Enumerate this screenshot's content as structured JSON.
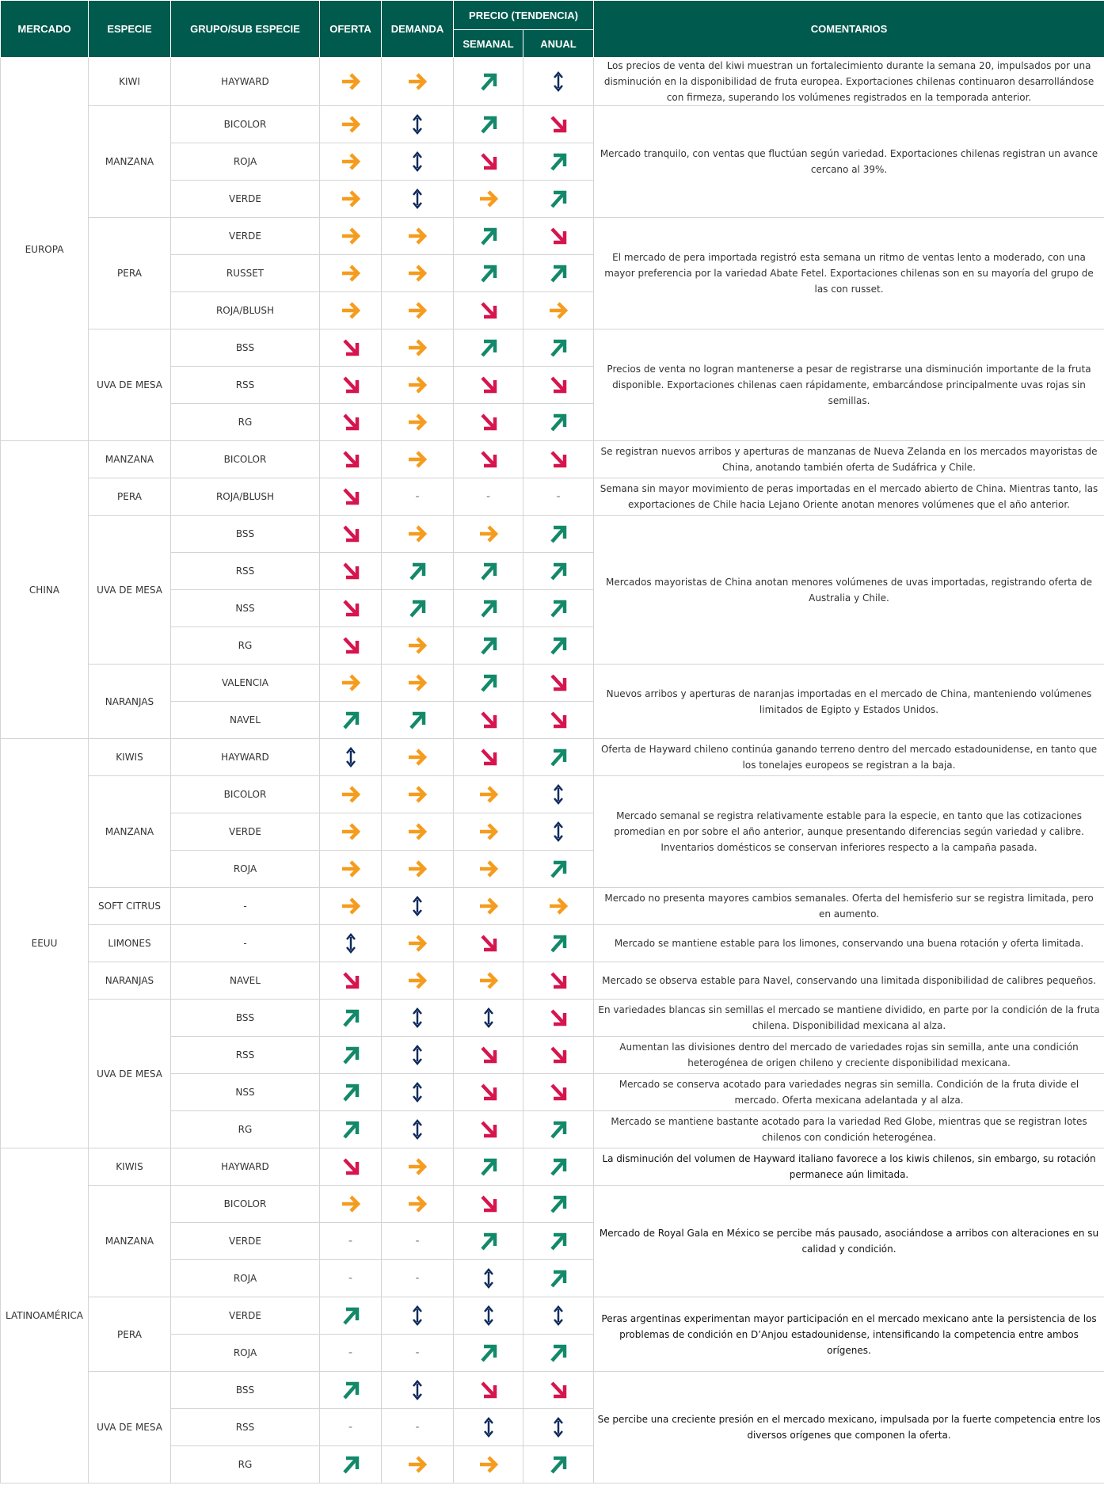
{
  "colors": {
    "header_bg": "#005a4e",
    "right": "#f59c1e",
    "up": "#13896a",
    "down": "#d6154e",
    "updown": "#0e2a5c"
  },
  "icon_names": {
    "right": "right-arrow-icon",
    "up": "up-right-arrow-icon",
    "down": "down-right-arrow-icon",
    "updown": "up-down-arrow-icon",
    "none": "dash"
  },
  "header": {
    "mercado": "MERCADO",
    "especie": "ESPECIE",
    "grupo": "GRUPO/SUB ESPECIE",
    "oferta": "OFERTA",
    "demanda": "DEMANDA",
    "precio": "PRECIO (TENDENCIA)",
    "semanal": "SEMANAL",
    "anual": "ANUAL",
    "comentarios": "COMENTARIOS"
  },
  "markets": [
    {
      "name": "EUROPA",
      "species": [
        {
          "name": "KIWI",
          "groups": [
            {
              "name": "HAYWARD",
              "oferta": "right",
              "demanda": "right",
              "semanal": "up",
              "anual": "updown"
            }
          ],
          "comment": "Los precios de venta del kiwi muestran un fortalecimiento durante la semana 20, impulsados por una disminución en la disponibilidad de fruta europea. Exportaciones chilenas continuaron desarrollándose con firmeza, superando los volúmenes registrados en la temporada anterior."
        },
        {
          "name": "MANZANA",
          "groups": [
            {
              "name": "BICOLOR",
              "oferta": "right",
              "demanda": "updown",
              "semanal": "up",
              "anual": "down"
            },
            {
              "name": "ROJA",
              "oferta": "right",
              "demanda": "updown",
              "semanal": "down",
              "anual": "up"
            },
            {
              "name": "VERDE",
              "oferta": "right",
              "demanda": "updown",
              "semanal": "right",
              "anual": "up"
            }
          ],
          "comment": "Mercado tranquilo, con ventas que fluctúan según variedad. Exportaciones chilenas registran un avance cercano al 39%."
        },
        {
          "name": "PERA",
          "groups": [
            {
              "name": "VERDE",
              "oferta": "right",
              "demanda": "right",
              "semanal": "up",
              "anual": "down"
            },
            {
              "name": "RUSSET",
              "oferta": "right",
              "demanda": "right",
              "semanal": "up",
              "anual": "up"
            },
            {
              "name": "ROJA/BLUSH",
              "oferta": "right",
              "demanda": "right",
              "semanal": "down",
              "anual": "right"
            }
          ],
          "comment": "El mercado de pera importada registró esta semana un ritmo de ventas lento a moderado, con una mayor preferencia por la variedad Abate Fetel. Exportaciones chilenas son en su mayoría del grupo de las con russet."
        },
        {
          "name": "UVA DE MESA",
          "groups": [
            {
              "name": "BSS",
              "oferta": "down",
              "demanda": "right",
              "semanal": "up",
              "anual": "up"
            },
            {
              "name": "RSS",
              "oferta": "down",
              "demanda": "right",
              "semanal": "down",
              "anual": "down"
            },
            {
              "name": "RG",
              "oferta": "down",
              "demanda": "right",
              "semanal": "down",
              "anual": "up"
            }
          ],
          "comment": "Precios de venta no logran mantenerse a pesar de registrarse una disminución importante de la fruta disponible. Exportaciones chilenas caen rápidamente, embarcándose principalmente uvas rojas sin semillas."
        }
      ]
    },
    {
      "name": "CHINA",
      "species": [
        {
          "name": "MANZANA",
          "groups": [
            {
              "name": "BICOLOR",
              "oferta": "down",
              "demanda": "right",
              "semanal": "down",
              "anual": "down"
            }
          ],
          "comment": "Se registran nuevos arribos y aperturas de manzanas de Nueva Zelanda en los mercados mayoristas de China, anotando también oferta de Sudáfrica y Chile."
        },
        {
          "name": "PERA",
          "groups": [
            {
              "name": "ROJA/BLUSH",
              "oferta": "down",
              "demanda": "none",
              "semanal": "none",
              "anual": "none"
            }
          ],
          "comment": "Semana sin mayor movimiento de peras importadas en el mercado abierto de China. Mientras tanto, las exportaciones de Chile hacia Lejano Oriente anotan menores volúmenes que el año anterior."
        },
        {
          "name": "UVA DE MESA",
          "groups": [
            {
              "name": "BSS",
              "oferta": "down",
              "demanda": "right",
              "semanal": "right",
              "anual": "up"
            },
            {
              "name": "RSS",
              "oferta": "down",
              "demanda": "up",
              "semanal": "up",
              "anual": "up"
            },
            {
              "name": "NSS",
              "oferta": "down",
              "demanda": "up",
              "semanal": "up",
              "anual": "up"
            },
            {
              "name": "RG",
              "oferta": "down",
              "demanda": "right",
              "semanal": "up",
              "anual": "up"
            }
          ],
          "comment": "Mercados mayoristas de China anotan menores volúmenes de uvas importadas, registrando oferta de Australia y Chile."
        },
        {
          "name": "NARANJAS",
          "groups": [
            {
              "name": "VALENCIA",
              "oferta": "right",
              "demanda": "right",
              "semanal": "up",
              "anual": "down"
            },
            {
              "name": "NAVEL",
              "oferta": "up",
              "demanda": "up",
              "semanal": "down",
              "anual": "down"
            }
          ],
          "comment": "Nuevos arribos y aperturas de naranjas importadas en el mercado de China, manteniendo volúmenes limitados de Egipto y Estados Unidos."
        }
      ]
    },
    {
      "name": "EEUU",
      "species": [
        {
          "name": "KIWIS",
          "groups": [
            {
              "name": "HAYWARD",
              "oferta": "updown",
              "demanda": "right",
              "semanal": "down",
              "anual": "up"
            }
          ],
          "comment": "Oferta de Hayward chileno continúa ganando terreno dentro del mercado estadounidense, en tanto que los tonelajes europeos se registran a la baja."
        },
        {
          "name": "MANZANA",
          "groups": [
            {
              "name": "BICOLOR",
              "oferta": "right",
              "demanda": "right",
              "semanal": "right",
              "anual": "updown"
            },
            {
              "name": "VERDE",
              "oferta": "right",
              "demanda": "right",
              "semanal": "right",
              "anual": "updown"
            },
            {
              "name": "ROJA",
              "oferta": "right",
              "demanda": "right",
              "semanal": "right",
              "anual": "up"
            }
          ],
          "comment": "Mercado semanal se registra relativamente estable para la especie, en tanto que las cotizaciones promedian en por sobre el año anterior, aunque presentando diferencias según variedad y calibre. Inventarios domésticos se conservan inferiores respecto a la campaña pasada."
        },
        {
          "name": "SOFT CITRUS",
          "groups": [
            {
              "name": "-",
              "oferta": "right",
              "demanda": "updown",
              "semanal": "right",
              "anual": "right"
            }
          ],
          "comment": "Mercado no presenta mayores cambios semanales. Oferta del hemisferio sur se registra limitada, pero en aumento."
        },
        {
          "name": "LIMONES",
          "groups": [
            {
              "name": "-",
              "oferta": "updown",
              "demanda": "right",
              "semanal": "down",
              "anual": "up"
            }
          ],
          "comment": "Mercado se mantiene estable para los limones, conservando una buena rotación y oferta limitada."
        },
        {
          "name": "NARANJAS",
          "groups": [
            {
              "name": "NAVEL",
              "oferta": "down",
              "demanda": "right",
              "semanal": "right",
              "anual": "down"
            }
          ],
          "comment": "Mercado se observa estable para Navel, conservando una limitada disponibilidad de calibres pequeños."
        },
        {
          "name": "UVA DE MESA",
          "groups": [
            {
              "name": "BSS",
              "oferta": "up",
              "demanda": "updown",
              "semanal": "updown",
              "anual": "down",
              "comment": "En variedades blancas sin semillas el mercado se mantiene dividido, en parte por la condición de la fruta chilena. Disponibilidad mexicana al alza."
            },
            {
              "name": "RSS",
              "oferta": "up",
              "demanda": "updown",
              "semanal": "down",
              "anual": "down",
              "comment": "Aumentan las divisiones dentro del mercado de variedades rojas sin semilla, ante una condición heterogénea de origen chileno y creciente disponibilidad mexicana."
            },
            {
              "name": "NSS",
              "oferta": "up",
              "demanda": "updown",
              "semanal": "down",
              "anual": "down",
              "comment": "Mercado se conserva acotado para variedades negras sin semilla. Condición de la fruta divide el mercado. Oferta mexicana adelantada y al alza."
            },
            {
              "name": "RG",
              "oferta": "up",
              "demanda": "updown",
              "semanal": "down",
              "anual": "up",
              "comment": "Mercado se mantiene bastante acotado para la variedad Red Globe, mientras que se registran lotes chilenos con condición heterogénea."
            }
          ]
        }
      ]
    },
    {
      "name": "LATINOAMÉRICA",
      "species": [
        {
          "name": "KIWIS",
          "groups": [
            {
              "name": "HAYWARD",
              "oferta": "down",
              "demanda": "right",
              "semanal": "up",
              "anual": "up"
            }
          ],
          "comment": "La disminución del volumen de Hayward italiano favorece a los kiwis chilenos, sin embargo, su rotación permanece aún limitada.",
          "dark": true
        },
        {
          "name": "MANZANA",
          "groups": [
            {
              "name": "BICOLOR",
              "oferta": "right",
              "demanda": "right",
              "semanal": "down",
              "anual": "up"
            },
            {
              "name": "VERDE",
              "oferta": "none",
              "demanda": "none",
              "semanal": "up",
              "anual": "up"
            },
            {
              "name": "ROJA",
              "oferta": "none",
              "demanda": "none",
              "semanal": "updown",
              "anual": "up"
            }
          ],
          "comment": "Mercado de Royal Gala en México se percibe más pausado, asociándose a arribos con alteraciones en su calidad y condición.",
          "dark": true
        },
        {
          "name": "PERA",
          "groups": [
            {
              "name": "VERDE",
              "oferta": "up",
              "demanda": "updown",
              "semanal": "updown",
              "anual": "updown"
            },
            {
              "name": "ROJA",
              "oferta": "none",
              "demanda": "none",
              "semanal": "up",
              "anual": "up"
            }
          ],
          "comment": "Peras argentinas experimentan mayor participación en el mercado mexicano ante la persistencia de los problemas de condición en D’Anjou estadounidense, intensificando la competencia entre ambos orígenes.",
          "dark": true
        },
        {
          "name": "UVA DE MESA",
          "groups": [
            {
              "name": "BSS",
              "oferta": "up",
              "demanda": "updown",
              "semanal": "down",
              "anual": "down"
            },
            {
              "name": "RSS",
              "oferta": "none",
              "demanda": "none",
              "semanal": "updown",
              "anual": "updown"
            },
            {
              "name": "RG",
              "oferta": "up",
              "demanda": "right",
              "semanal": "right",
              "anual": "up"
            }
          ],
          "comment": "Se percibe una creciente presión en el mercado mexicano, impulsada por la fuerte competencia entre los diversos orígenes que componen la oferta.",
          "dark": true
        }
      ]
    }
  ]
}
